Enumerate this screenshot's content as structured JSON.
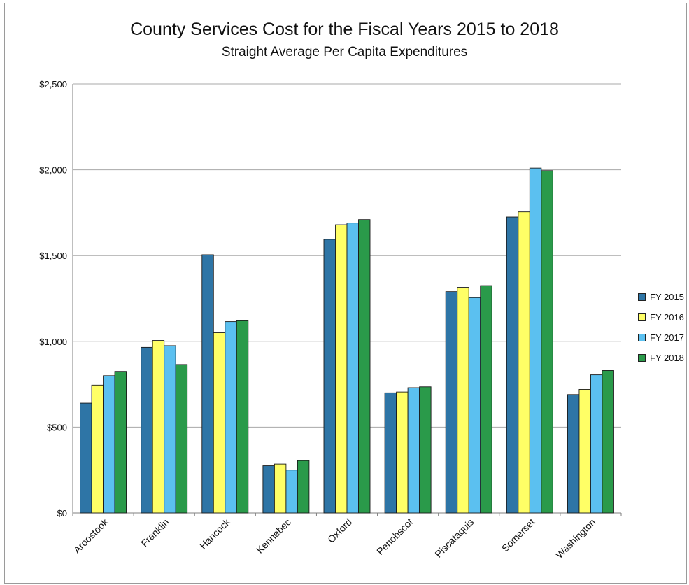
{
  "chart_data": {
    "type": "bar",
    "title": "County Services Cost for the Fiscal Years 2015 to 2018",
    "subtitle": "Straight Average Per Capita Expenditures",
    "xlabel": "",
    "ylabel": "",
    "ylim": [
      0,
      2500
    ],
    "yticks": [
      0,
      500,
      1000,
      1500,
      2000,
      2500
    ],
    "ytick_labels": [
      "$0",
      "$500",
      "$1,000",
      "$1,500",
      "$2,000",
      "$2,500"
    ],
    "grid": true,
    "legend_position": "right",
    "categories": [
      "Aroostook",
      "Franklin",
      "Hancock",
      "Kennebec",
      "Oxford",
      "Penobscot",
      "Piscataquis",
      "Somerset",
      "Washington"
    ],
    "series": [
      {
        "name": "FY 2015",
        "color": "#2e75a6",
        "values": [
          640,
          965,
          1505,
          275,
          1595,
          700,
          1290,
          1725,
          690
        ]
      },
      {
        "name": "FY 2016",
        "color": "#ffff66",
        "values": [
          745,
          1005,
          1050,
          285,
          1680,
          705,
          1315,
          1755,
          720
        ]
      },
      {
        "name": "FY 2017",
        "color": "#5bc0f0",
        "values": [
          800,
          975,
          1115,
          250,
          1690,
          730,
          1255,
          2010,
          805
        ]
      },
      {
        "name": "FY 2018",
        "color": "#2a9a4a",
        "values": [
          825,
          865,
          1120,
          305,
          1710,
          735,
          1325,
          1995,
          830
        ]
      }
    ]
  }
}
